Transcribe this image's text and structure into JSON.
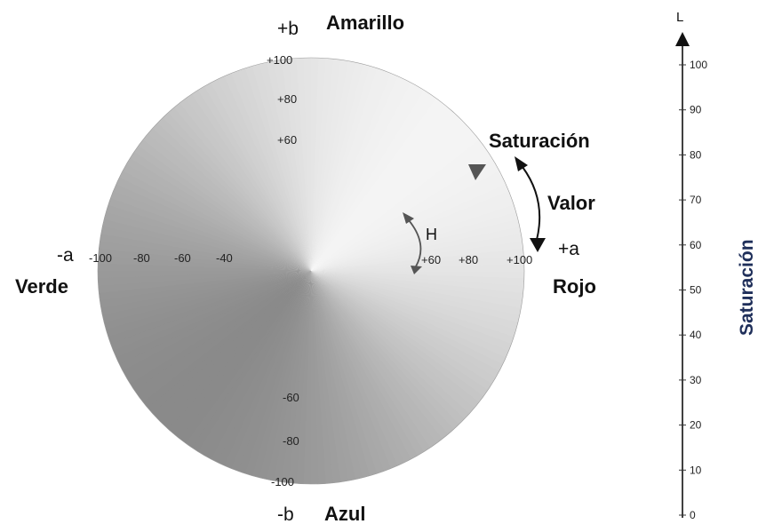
{
  "axes": {
    "b_plus": "+b",
    "b_minus": "-b",
    "a_plus": "+a",
    "a_minus": "-a"
  },
  "colors_text": {
    "top": "Amarillo",
    "bottom": "Azul",
    "left": "Verde",
    "right": "Rojo"
  },
  "ticks": {
    "b_positive": [
      "+100",
      "+80",
      "+60"
    ],
    "b_negative": [
      "-60",
      "-80",
      "-100"
    ],
    "a_negative": [
      "-100",
      "-80",
      "-60",
      "-40"
    ],
    "a_positive": [
      "+60",
      "+80",
      "+100"
    ]
  },
  "annotations": {
    "saturacion": "Saturación",
    "valor": "Valor",
    "hue": "H"
  },
  "lightness_scale": {
    "label": "L",
    "ticks": [
      "100",
      "90",
      "80",
      "70",
      "60",
      "50",
      "40",
      "30",
      "20",
      "10",
      "0"
    ],
    "side_label": "Saturación"
  },
  "colors": {
    "disc_light": "#f4f4f4",
    "disc_dark": "#8a8a8a",
    "text": "#111111",
    "side_label": "#1f2f5a"
  }
}
